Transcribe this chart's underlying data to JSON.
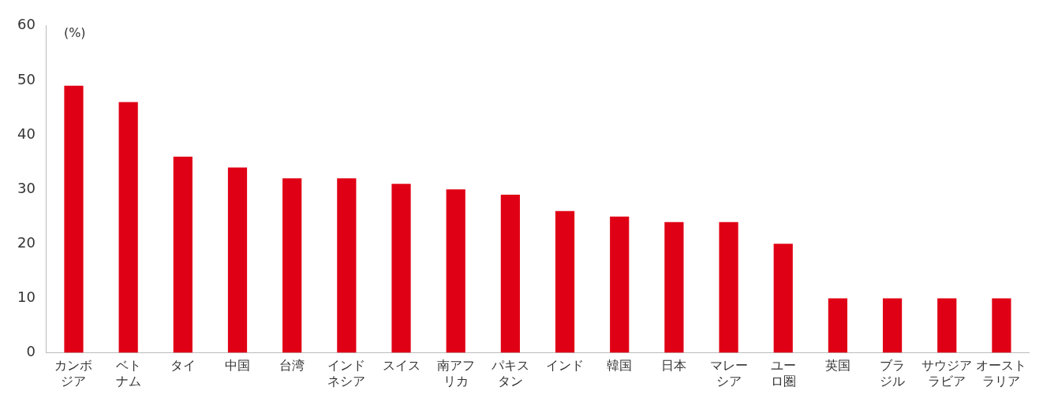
{
  "chart_data": {
    "type": "bar",
    "ylabel": "(%)",
    "categories": [
      "カンボジア",
      "ベトナム",
      "タイ",
      "中国",
      "台湾",
      "インドネシア",
      "スイス",
      "南アフリカ",
      "パキスタン",
      "インド",
      "韓国",
      "日本",
      "マレーシア",
      "ユーロ圏",
      "英国",
      "ブラジル",
      "サウジアラビア",
      "オーストラリア"
    ],
    "values": [
      49,
      46,
      36,
      34,
      32,
      32,
      31,
      30,
      29,
      26,
      25,
      24,
      24,
      20,
      10,
      10,
      10,
      10
    ],
    "color": "#e00015",
    "ylim": [
      0,
      60
    ],
    "yticks": [
      0,
      10,
      20,
      30,
      40,
      50,
      60
    ],
    "grid": false,
    "legend": false
  }
}
